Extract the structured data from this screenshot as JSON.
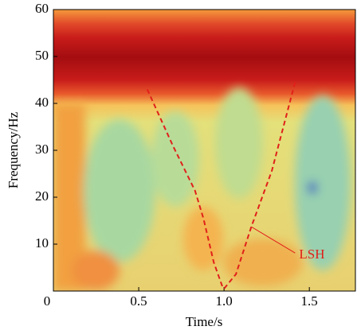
{
  "chart_data": {
    "type": "line",
    "xlabel": "Time/s",
    "ylabel": "Frequency/Hz",
    "xlim": [
      0,
      1.77
    ],
    "ylim": [
      0,
      60
    ],
    "xticks": [
      0,
      0.5,
      {
        "value": 1,
        "label": "1.0"
      },
      1.5
    ],
    "yticks": [
      10,
      20,
      30,
      40,
      50,
      60
    ],
    "x": [
      0.55,
      0.7,
      0.83,
      0.88,
      0.94,
      0.99,
      1.0,
      1.07,
      1.16,
      1.28,
      1.42
    ],
    "series": [
      {
        "name": "LSH",
        "color": "#e0201a",
        "values": [
          43,
          31,
          21.4,
          15.4,
          6.1,
          1,
          0.5,
          3.6,
          13.7,
          25.6,
          45
        ]
      }
    ],
    "annotation": {
      "text": "LSH",
      "x": 1.16,
      "y": 13.7
    }
  }
}
